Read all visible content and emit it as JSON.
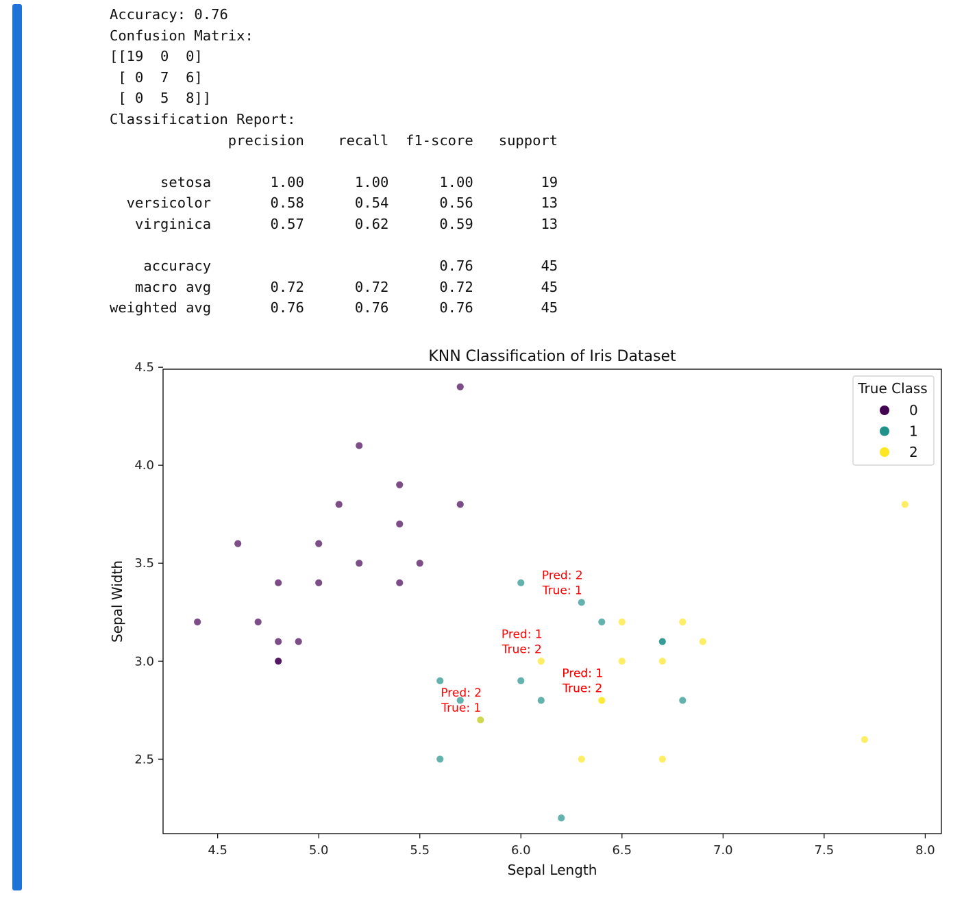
{
  "output": {
    "accuracy_line": "Accuracy: 0.76",
    "cm_title": "Confusion Matrix:",
    "cm_rows": [
      "[[19  0  0]",
      " [ 0  7  6]",
      " [ 0  5  8]]"
    ],
    "report_title": "Classification Report:",
    "report_lines": [
      "              precision    recall  f1-score   support",
      "",
      "      setosa       1.00      1.00      1.00        19",
      "  versicolor       0.58      0.54      0.56        13",
      "   virginica       0.57      0.62      0.59        13",
      "",
      "    accuracy                           0.76        45",
      "   macro avg       0.72      0.72      0.72        45",
      "weighted avg       0.76      0.76      0.76        45"
    ]
  },
  "chart_data": {
    "type": "scatter",
    "title": "KNN Classification of Iris Dataset",
    "xlabel": "Sepal Length",
    "ylabel": "Sepal Width",
    "xlim": [
      4.23,
      8.08
    ],
    "ylim": [
      2.12,
      4.49
    ],
    "xticks": [
      "4.5",
      "5.0",
      "5.5",
      "6.0",
      "6.5",
      "7.0",
      "7.5",
      "8.0"
    ],
    "yticks": [
      "2.5",
      "3.0",
      "3.5",
      "4.0",
      "4.5"
    ],
    "legend": {
      "title": "True Class",
      "placement": "top-right",
      "labels": [
        "0",
        "1",
        "2"
      ]
    },
    "colors": {
      "0": "#440154",
      "1": "#21918c",
      "2": "#fde725",
      "annotation": "#ff0000"
    },
    "series": [
      {
        "name": "0",
        "points": [
          [
            5.7,
            4.4
          ],
          [
            5.2,
            4.1
          ],
          [
            5.4,
            3.9
          ],
          [
            5.1,
            3.8
          ],
          [
            5.7,
            3.8
          ],
          [
            5.4,
            3.7
          ],
          [
            4.6,
            3.6
          ],
          [
            5.0,
            3.6
          ],
          [
            5.2,
            3.5
          ],
          [
            5.5,
            3.5
          ],
          [
            4.8,
            3.4
          ],
          [
            5.0,
            3.4
          ],
          [
            5.4,
            3.4
          ],
          [
            4.4,
            3.2
          ],
          [
            4.7,
            3.2
          ],
          [
            4.8,
            3.1
          ],
          [
            4.9,
            3.1
          ],
          [
            4.8,
            3.0
          ],
          [
            4.8,
            3.0
          ]
        ]
      },
      {
        "name": "1",
        "points": [
          [
            6.0,
            3.4
          ],
          [
            6.3,
            3.3
          ],
          [
            6.4,
            3.2
          ],
          [
            6.7,
            3.1
          ],
          [
            6.7,
            3.1
          ],
          [
            5.6,
            2.9
          ],
          [
            6.0,
            2.9
          ],
          [
            6.1,
            2.8
          ],
          [
            6.8,
            2.8
          ],
          [
            5.7,
            2.8
          ],
          [
            5.6,
            2.5
          ],
          [
            6.2,
            2.2
          ],
          [
            5.8,
            2.7
          ]
        ]
      },
      {
        "name": "2",
        "points": [
          [
            7.9,
            3.8
          ],
          [
            6.5,
            3.2
          ],
          [
            6.8,
            3.2
          ],
          [
            6.9,
            3.1
          ],
          [
            6.1,
            3.0
          ],
          [
            6.5,
            3.0
          ],
          [
            6.7,
            3.0
          ],
          [
            6.4,
            2.8
          ],
          [
            5.8,
            2.7
          ],
          [
            7.7,
            2.6
          ],
          [
            6.3,
            2.5
          ],
          [
            6.7,
            2.5
          ],
          [
            6.4,
            2.8
          ]
        ]
      }
    ],
    "annotations": [
      {
        "x": 6.3,
        "y": 3.3,
        "lines": [
          "Pred: 2",
          "True: 1"
        ]
      },
      {
        "x": 6.1,
        "y": 3.0,
        "lines": [
          "Pred: 1",
          "True: 2"
        ]
      },
      {
        "x": 6.4,
        "y": 2.8,
        "lines": [
          "Pred: 1",
          "True: 2"
        ]
      },
      {
        "x": 6.4,
        "y": 2.8,
        "lines": [
          "Pred: 1",
          "True: 2"
        ]
      },
      {
        "x": 5.8,
        "y": 2.7,
        "lines": [
          "Pred: 2",
          "True: 1"
        ]
      }
    ]
  }
}
